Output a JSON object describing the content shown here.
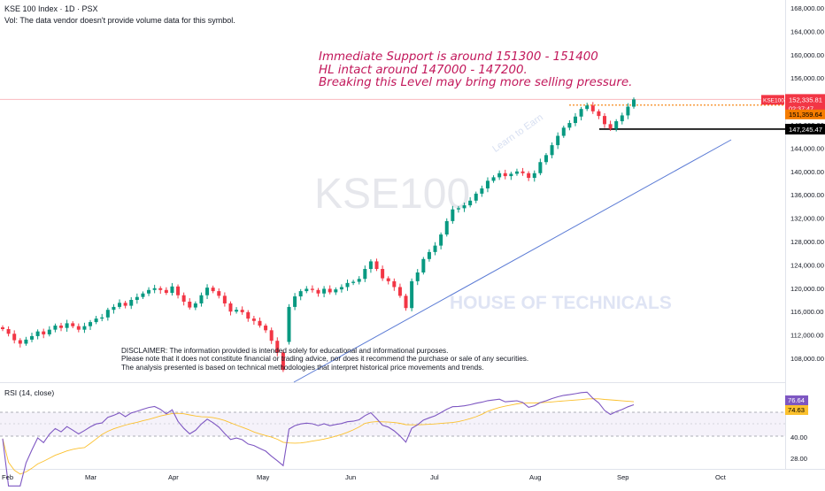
{
  "header": {
    "symbol_line": "KSE 100 Index · 1D · PSX",
    "volume_line": "Vol: The data vendor doesn't provide volume data for this symbol."
  },
  "watermark": {
    "symbol": "KSE100",
    "brand": "HOUSE OF TECHNICALS",
    "tagline": "Learn to Earn"
  },
  "annotation": {
    "lines": [
      "Immediate Support is around 151300 - 151400",
      "HL intact around 147000 - 147200.",
      "Breaking this Level may bring more selling pressure."
    ],
    "color": "#c2185b"
  },
  "disclaimer": {
    "lines": [
      "DISCLAIMER: The information provided is intended solely for educational and informational purposes.",
      "Please note that it does not constitute financial or trading advice, nor does it recommend the purchase or sale of any securities.",
      "The analysis presented is based on technical methodologies that interpret historical price movements and trends."
    ]
  },
  "rsi": {
    "label": "RSI (14, close)",
    "value_label": "76.64",
    "ma_label": "74.63"
  },
  "price_labels": {
    "symbol_tag": "KSE100",
    "last": "152,335.81",
    "countdown": "02:37:47",
    "support": "151,359.64",
    "hl": "147,245.47"
  },
  "colors": {
    "up": "#089981",
    "down": "#f23645",
    "rsi_line": "#7e57c2",
    "rsi_ma": "#fbc02d",
    "trendline": "#5b7bd5",
    "support_line": "#f57c00",
    "hl_line": "#000000",
    "last_price": "#f23645"
  },
  "chart_data": [
    {
      "type": "candlestick",
      "title": "KSE 100 Index · 1D · PSX",
      "ylim": [
        104000,
        168000
      ],
      "y_ticks": [
        "168,000.00",
        "164,000.00",
        "160,000.00",
        "156,000.00",
        "152,000.00",
        "148,000.00",
        "144,000.00",
        "140,000.00",
        "136,000.00",
        "132,000.00",
        "128,000.00",
        "124,000.00",
        "120,000.00",
        "116,000.00",
        "112,000.00",
        "108,000.00"
      ],
      "y_tick_values": [
        168000,
        164000,
        160000,
        156000,
        152000,
        148000,
        144000,
        140000,
        136000,
        132000,
        128000,
        124000,
        120000,
        116000,
        112000,
        108000
      ],
      "x_ticks": [
        "Feb",
        "Mar",
        "Apr",
        "May",
        "Jun",
        "Jul",
        "Aug",
        "Sep",
        "Oct"
      ],
      "closes": [
        113000,
        112200,
        111100,
        110500,
        111200,
        111800,
        112600,
        112100,
        112900,
        113600,
        113200,
        114000,
        113500,
        112900,
        113500,
        114200,
        114800,
        115000,
        116300,
        116800,
        117500,
        117000,
        118000,
        118500,
        119100,
        119700,
        120000,
        119700,
        119200,
        120300,
        118800,
        117700,
        116700,
        117400,
        118800,
        120100,
        119500,
        118700,
        117400,
        116000,
        116300,
        115900,
        114800,
        114400,
        113600,
        112800,
        111000,
        109000,
        106000,
        116800,
        118600,
        119500,
        119900,
        119700,
        119100,
        119900,
        119300,
        119800,
        120200,
        120900,
        121100,
        121600,
        123300,
        124600,
        123300,
        121700,
        121200,
        120200,
        118700,
        116600,
        121200,
        122700,
        125000,
        126200,
        127300,
        129200,
        131500,
        133500,
        133700,
        134200,
        135000,
        136200,
        137100,
        138400,
        139000,
        139700,
        139200,
        139600,
        140000,
        139700,
        138900,
        139700,
        141600,
        142800,
        144500,
        146100,
        147500,
        148300,
        149400,
        150700,
        151300,
        150300,
        149500,
        148100,
        147300,
        148600,
        149600,
        151100,
        152336
      ],
      "trendline": {
        "from": [
          "May",
          104000
        ],
        "to": [
          "Sep-end",
          145000
        ]
      },
      "levels": [
        {
          "name": "Immediate support",
          "value": 151359.64
        },
        {
          "name": "Higher low",
          "value": 147245.47
        }
      ],
      "last_price": 152335.81
    },
    {
      "type": "line",
      "title": "RSI (14, close)",
      "ylim": [
        22,
        84
      ],
      "y_ticks": [
        "40.00",
        "28.00"
      ],
      "y_tick_values": [
        40,
        28
      ],
      "bands": [
        30,
        50,
        70
      ],
      "last_value": 76.64,
      "ma_last_value": 74.63
    }
  ]
}
